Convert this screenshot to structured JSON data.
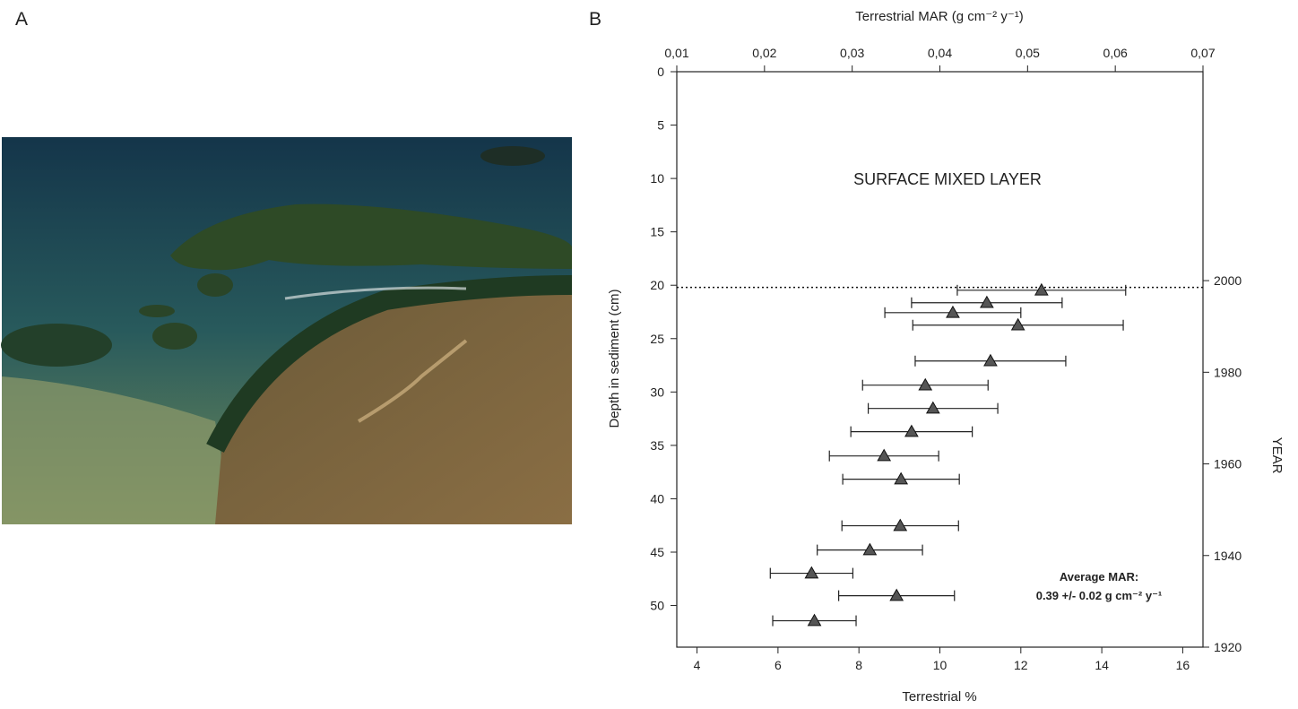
{
  "photo_panel": {
    "label": "A"
  },
  "chart_data": {
    "type": "scatter",
    "panel_label": "B",
    "xlabel": "Terrestrial %",
    "ylabel": "Depth in sediment (cm)",
    "x2label": "Terrestrial MAR (g cm⁻² y⁻¹)",
    "y2label": "YEAR",
    "xlim": [
      3.5,
      16.5
    ],
    "xticks": [
      4,
      6,
      8,
      10,
      12,
      14,
      16
    ],
    "ylim": [
      0,
      53.9
    ],
    "invert_y": true,
    "yticks": [
      0,
      5,
      10,
      15,
      20,
      25,
      30,
      35,
      40,
      45,
      50
    ],
    "x2lim": [
      0.01,
      0.07
    ],
    "x2ticks": [
      {
        "value": 0.01,
        "label": "0,01"
      },
      {
        "value": 0.02,
        "label": "0,02"
      },
      {
        "value": 0.03,
        "label": "0,03"
      },
      {
        "value": 0.04,
        "label": "0,04"
      },
      {
        "value": 0.05,
        "label": "0,05"
      },
      {
        "value": 0.06,
        "label": "0,06"
      },
      {
        "value": 0.07,
        "label": "0,07"
      }
    ],
    "y2lim": [
      1920,
      2045.6
    ],
    "y2ticks": [
      1920,
      1940,
      1960,
      1980,
      2000
    ],
    "hline": 20.2,
    "annotations": [
      "SURFACE MIXED LAYER",
      "Average MAR:",
      "0.39 +/- 0.02 g cm⁻² y⁻¹"
    ],
    "series": [
      {
        "color": "#555555",
        "marker": "triangle",
        "x": [
          12.51,
          11.16,
          10.32,
          11.93,
          11.25,
          9.64,
          9.83,
          9.3,
          8.62,
          9.04,
          9.02,
          8.27,
          6.83,
          8.93,
          6.9
        ],
        "y": [
          20.47,
          21.64,
          22.57,
          23.74,
          27.1,
          29.36,
          31.54,
          33.72,
          35.99,
          38.17,
          42.53,
          44.8,
          46.98,
          49.08,
          51.43
        ],
        "xerr": [
          2.08,
          1.86,
          1.68,
          2.6,
          1.86,
          1.55,
          1.6,
          1.5,
          1.35,
          1.44,
          1.44,
          1.3,
          1.02,
          1.43,
          1.03
        ]
      }
    ]
  }
}
